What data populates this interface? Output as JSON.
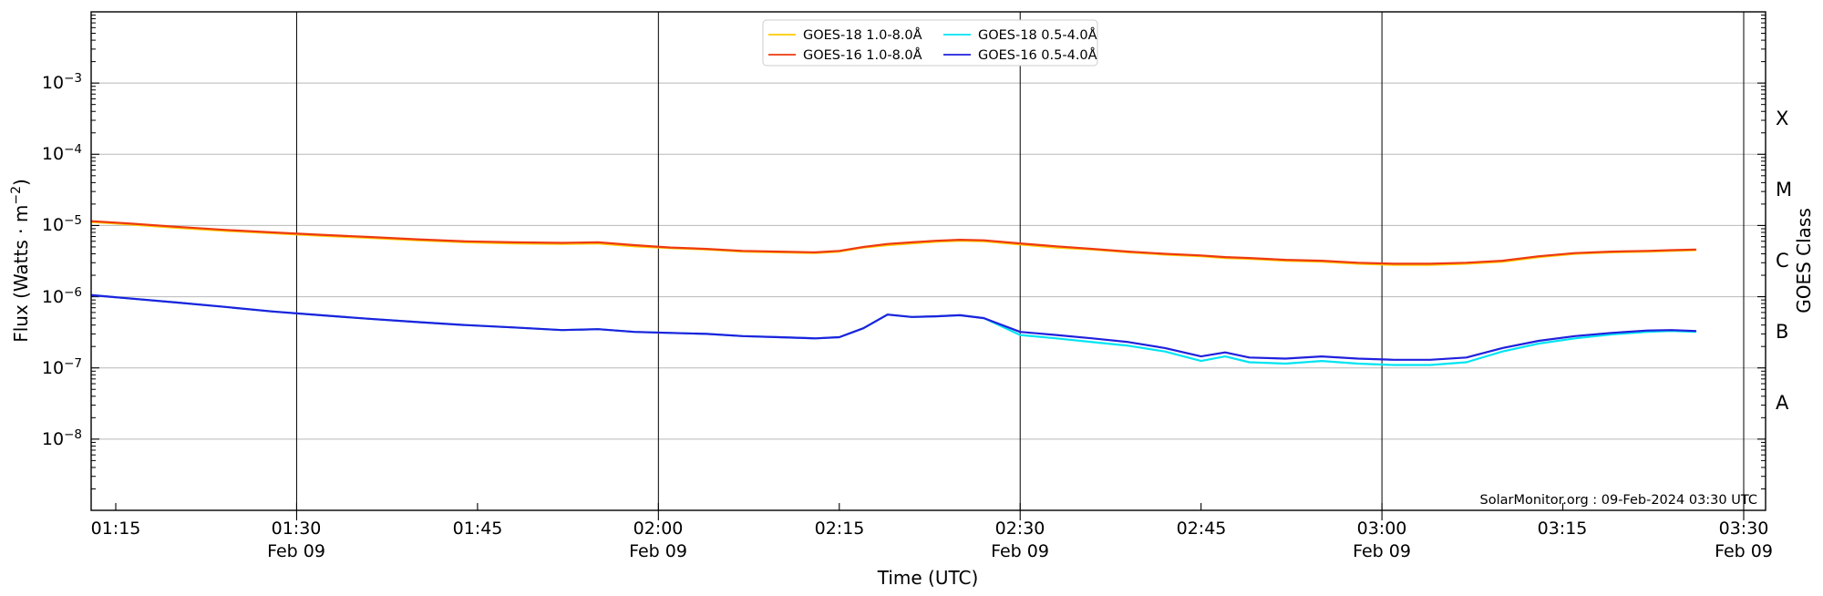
{
  "page": {
    "background": "#ffffff"
  },
  "chart_data": {
    "type": "line",
    "title": "",
    "xlabel": "Time (UTC)",
    "ylabel_text": "Flux (Watts · m^-2)",
    "ylabel_parts": {
      "prefix": "Flux (Watts · m",
      "exponent": "−2",
      "suffix": ")"
    },
    "y2label": "GOES Class",
    "annotation": "SolarMonitor.org : 09-Feb-2024 03:30 UTC",
    "colors": {
      "background": "#ffffff",
      "axis": "#000000",
      "grid_minor_decade": "#b9b9b9",
      "grid_date_line": "#000000",
      "legend_border": "#cccccc"
    },
    "y_axis": {
      "scale": "log",
      "min": 1e-09,
      "max": 0.01,
      "tick_exponents": [
        -3,
        -4,
        -5,
        -6,
        -7,
        -8
      ],
      "tick_labels": [
        {
          "base": "10",
          "exp": "−3"
        },
        {
          "base": "10",
          "exp": "−4"
        },
        {
          "base": "10",
          "exp": "−5"
        },
        {
          "base": "10",
          "exp": "−6"
        },
        {
          "base": "10",
          "exp": "−7"
        },
        {
          "base": "10",
          "exp": "−8"
        }
      ]
    },
    "goes_class_bands": [
      {
        "label": "X",
        "between_exponents": [
          -4,
          -3
        ]
      },
      {
        "label": "M",
        "between_exponents": [
          -5,
          -4
        ]
      },
      {
        "label": "C",
        "between_exponents": [
          -6,
          -5
        ]
      },
      {
        "label": "B",
        "between_exponents": [
          -7,
          -6
        ]
      },
      {
        "label": "A",
        "between_exponents": [
          -8,
          -7
        ]
      }
    ],
    "x_axis": {
      "start": "01:13",
      "end": "03:31",
      "ticks": [
        {
          "label": "01:15",
          "sub": ""
        },
        {
          "label": "01:30",
          "sub": "Feb 09"
        },
        {
          "label": "01:45",
          "sub": ""
        },
        {
          "label": "02:00",
          "sub": "Feb 09"
        },
        {
          "label": "02:15",
          "sub": ""
        },
        {
          "label": "02:30",
          "sub": "Feb 09"
        },
        {
          "label": "02:45",
          "sub": ""
        },
        {
          "label": "03:00",
          "sub": "Feb 09"
        },
        {
          "label": "03:15",
          "sub": ""
        },
        {
          "label": "03:30",
          "sub": "Feb 09"
        }
      ]
    },
    "times": [
      "01:13",
      "01:16",
      "01:20",
      "01:24",
      "01:28",
      "01:32",
      "01:36",
      "01:40",
      "01:44",
      "01:48",
      "01:52",
      "01:55",
      "01:58",
      "02:01",
      "02:04",
      "02:07",
      "02:10",
      "02:13",
      "02:15",
      "02:17",
      "02:19",
      "02:21",
      "02:23",
      "02:25",
      "02:27",
      "02:30",
      "02:33",
      "02:36",
      "02:39",
      "02:42",
      "02:45",
      "02:47",
      "02:49",
      "02:52",
      "02:55",
      "02:58",
      "03:01",
      "03:04",
      "03:07",
      "03:10",
      "03:13",
      "03:16",
      "03:19",
      "03:22",
      "03:24",
      "03:26"
    ],
    "series": [
      {
        "name": "GOES-18 1.0-8.0Å",
        "color": "#ffcc00",
        "values": [
          1.12e-05,
          1.04e-05,
          9.3e-06,
          8.4e-06,
          7.8e-06,
          7.2e-06,
          6.7e-06,
          6.2e-06,
          5.8e-06,
          5.6e-06,
          5.5e-06,
          5.6e-06,
          5.1e-06,
          4.8e-06,
          4.6e-06,
          4.3e-06,
          4.2e-06,
          4.1e-06,
          4.3e-06,
          4.9e-06,
          5.3e-06,
          5.6e-06,
          5.9e-06,
          6.1e-06,
          6e-06,
          5.4e-06,
          4.9e-06,
          4.6e-06,
          4.2e-06,
          3.9e-06,
          3.7e-06,
          3.5e-06,
          3.4e-06,
          3.2e-06,
          3.1e-06,
          2.9e-06,
          2.8e-06,
          2.8e-06,
          2.9e-06,
          3.1e-06,
          3.6e-06,
          4e-06,
          4.2e-06,
          4.3e-06,
          4.4e-06,
          4.5e-06
        ]
      },
      {
        "name": "GOES-16 1.0-8.0Å",
        "color": "#ee3a10",
        "values": [
          1.15e-05,
          1.07e-05,
          9.6e-06,
          8.7e-06,
          8e-06,
          7.4e-06,
          6.9e-06,
          6.4e-06,
          6e-06,
          5.8e-06,
          5.7e-06,
          5.8e-06,
          5.3e-06,
          4.9e-06,
          4.7e-06,
          4.4e-06,
          4.3e-06,
          4.2e-06,
          4.4e-06,
          5e-06,
          5.5e-06,
          5.8e-06,
          6.1e-06,
          6.3e-06,
          6.2e-06,
          5.6e-06,
          5.1e-06,
          4.7e-06,
          4.3e-06,
          4e-06,
          3.8e-06,
          3.6e-06,
          3.5e-06,
          3.3e-06,
          3.2e-06,
          3e-06,
          2.9e-06,
          2.9e-06,
          3e-06,
          3.2e-06,
          3.7e-06,
          4.1e-06,
          4.3e-06,
          4.4e-06,
          4.5e-06,
          4.6e-06
        ]
      },
      {
        "name": "GOES-18 0.5-4.0Å",
        "color": "#00e4f2",
        "values": [
          1.05e-06,
          9.5e-07,
          8.3e-07,
          7.2e-07,
          6.2e-07,
          5.5e-07,
          4.9e-07,
          4.4e-07,
          4e-07,
          3.7e-07,
          3.4e-07,
          3.5e-07,
          3.2e-07,
          3.1e-07,
          3e-07,
          2.8e-07,
          2.7e-07,
          2.6e-07,
          2.7e-07,
          3.6e-07,
          5.6e-07,
          5.2e-07,
          5.3e-07,
          5.5e-07,
          5e-07,
          2.9e-07,
          2.6e-07,
          2.3e-07,
          2.05e-07,
          1.7e-07,
          1.25e-07,
          1.45e-07,
          1.2e-07,
          1.15e-07,
          1.25e-07,
          1.15e-07,
          1.1e-07,
          1.1e-07,
          1.2e-07,
          1.7e-07,
          2.2e-07,
          2.6e-07,
          2.95e-07,
          3.2e-07,
          3.3e-07,
          3.2e-07
        ]
      },
      {
        "name": "GOES-16 0.5-4.0Å",
        "color": "#2020dd",
        "values": [
          1.05e-06,
          9.5e-07,
          8.3e-07,
          7.2e-07,
          6.2e-07,
          5.5e-07,
          4.9e-07,
          4.4e-07,
          4e-07,
          3.7e-07,
          3.4e-07,
          3.5e-07,
          3.2e-07,
          3.1e-07,
          3e-07,
          2.8e-07,
          2.7e-07,
          2.6e-07,
          2.7e-07,
          3.6e-07,
          5.6e-07,
          5.2e-07,
          5.3e-07,
          5.5e-07,
          5e-07,
          3.2e-07,
          2.9e-07,
          2.6e-07,
          2.3e-07,
          1.9e-07,
          1.45e-07,
          1.65e-07,
          1.4e-07,
          1.35e-07,
          1.45e-07,
          1.35e-07,
          1.3e-07,
          1.3e-07,
          1.4e-07,
          1.9e-07,
          2.4e-07,
          2.8e-07,
          3.1e-07,
          3.35e-07,
          3.4e-07,
          3.3e-07
        ]
      }
    ],
    "legend": {
      "position": "top-center"
    }
  }
}
